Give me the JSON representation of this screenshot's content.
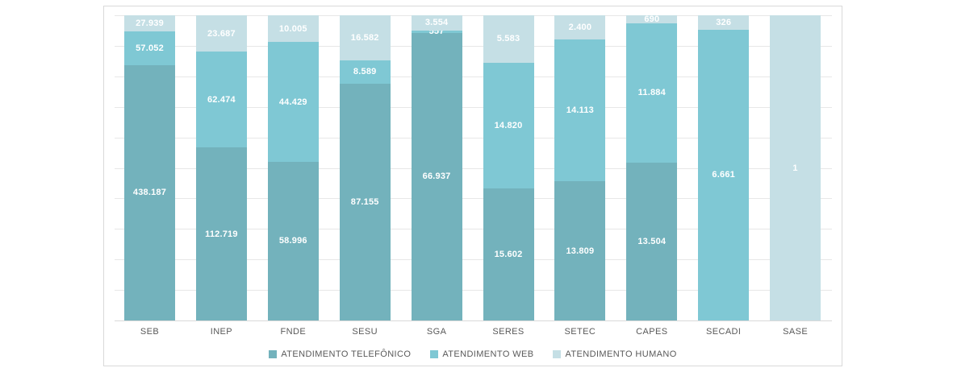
{
  "chart_data": {
    "type": "bar",
    "subtype": "stacked-100-percent-column",
    "title": "",
    "xlabel": "",
    "ylabel": "",
    "ylim": [
      0,
      1
    ],
    "gridlines": {
      "show": true,
      "interval_percent": 10,
      "color": "#e7e7e7"
    },
    "legend_position": "bottom",
    "categories": [
      "SEB",
      "INEP",
      "FNDE",
      "SESU",
      "SGA",
      "SERES",
      "SETEC",
      "CAPES",
      "SECADI",
      "SASE"
    ],
    "series": [
      {
        "name": "ATENDIMENTO TELEFÔNICO",
        "color": "#73b2bc",
        "values": [
          438187,
          112719,
          58996,
          87155,
          66937,
          15602,
          13809,
          13504,
          0,
          0
        ],
        "labels": [
          "438.187",
          "112.719",
          "58.996",
          "87.155",
          "66.937",
          "15.602",
          "13.809",
          "13.504",
          "",
          ""
        ]
      },
      {
        "name": "ATENDIMENTO WEB",
        "color": "#7fc8d4",
        "values": [
          57052,
          62474,
          44429,
          8589,
          557,
          14820,
          14113,
          11884,
          6661,
          0
        ],
        "labels": [
          "57.052",
          "62.474",
          "44.429",
          "8.589",
          "557",
          "14.820",
          "14.113",
          "11.884",
          "6.661",
          ""
        ]
      },
      {
        "name": "ATENDIMENTO HUMANO",
        "color": "#c5dfe5",
        "values": [
          27939,
          23687,
          10005,
          16582,
          3554,
          5583,
          2400,
          690,
          326,
          1
        ],
        "labels": [
          "27.939",
          "23.687",
          "10.005",
          "16.582",
          "3.554",
          "5.583",
          "2.400",
          "690",
          "326",
          "1"
        ]
      }
    ],
    "label_style": {
      "color": "#ffffff",
      "bold": true
    },
    "axis_text_color": "#595959",
    "border_color": "#d9d9d9"
  }
}
